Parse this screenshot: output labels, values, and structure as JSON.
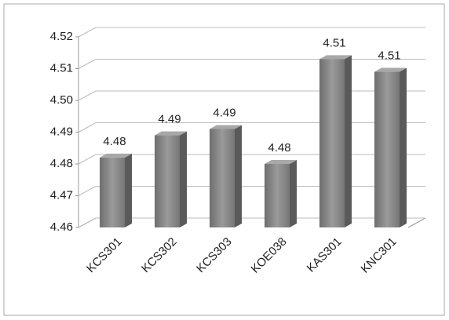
{
  "chart_data": {
    "type": "bar3d",
    "categories": [
      "KCS301",
      "KCS302",
      "KCS303",
      "KOE038",
      "KAS301",
      "KNC301"
    ],
    "values": [
      4.482,
      4.489,
      4.491,
      4.48,
      4.513,
      4.509
    ],
    "value_labels": [
      "4.48",
      "4.49",
      "4.49",
      "4.48",
      "4.51",
      "4.51"
    ],
    "color": "#8c8c8c",
    "ylim": [
      4.46,
      4.52
    ],
    "yticks": [
      4.46,
      4.47,
      4.48,
      4.49,
      {
        "value": 4.5,
        "label": "4.50"
      },
      4.51,
      4.52
    ],
    "grid": true
  }
}
